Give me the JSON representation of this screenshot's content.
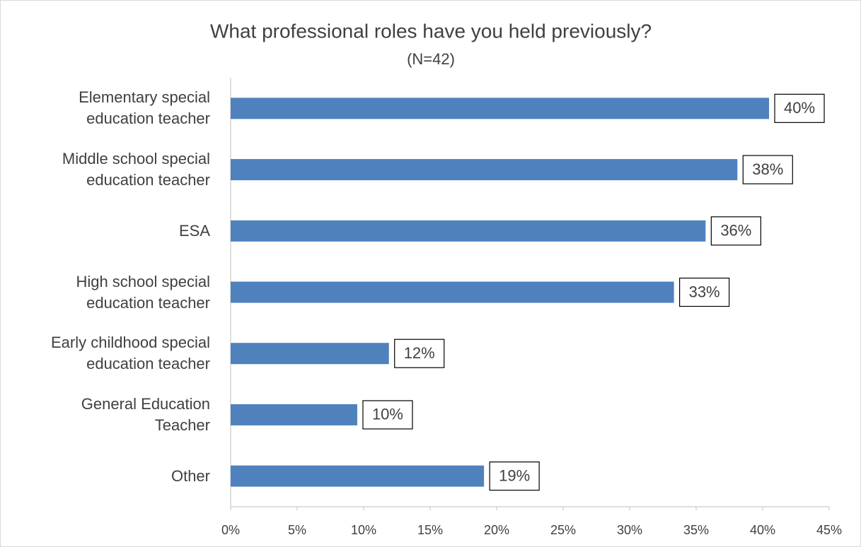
{
  "chart_data": {
    "type": "bar",
    "orientation": "horizontal",
    "title": "What professional roles have you held previously?",
    "subtitle": "(N=42)",
    "categories": [
      "Elementary special education teacher",
      "Middle school special education teacher",
      "ESA",
      "High school special education teacher",
      "Early childhood special education teacher",
      "General Education Teacher",
      "Other"
    ],
    "values": [
      40.48,
      38.1,
      35.71,
      33.33,
      11.9,
      9.52,
      19.05
    ],
    "value_labels": [
      "40%",
      "38%",
      "36%",
      "33%",
      "12%",
      "10%",
      "19%"
    ],
    "color": "#4f81bd",
    "xlim": [
      0,
      45
    ],
    "xticks": [
      {
        "value": 0,
        "label": "0%"
      },
      {
        "value": 5,
        "label": "5%"
      },
      {
        "value": 10,
        "label": "10%"
      },
      {
        "value": 15,
        "label": "15%"
      },
      {
        "value": 20,
        "label": "20%"
      },
      {
        "value": 25,
        "label": "25%"
      },
      {
        "value": 30,
        "label": "30%"
      },
      {
        "value": 35,
        "label": "35%"
      },
      {
        "value": 40,
        "label": "40%"
      },
      {
        "value": 45,
        "label": "45%"
      }
    ],
    "grid": false
  }
}
